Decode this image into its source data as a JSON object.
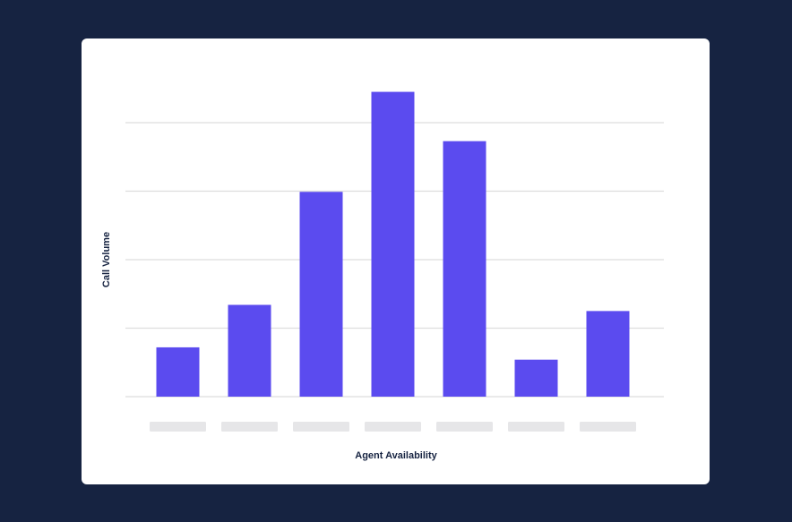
{
  "colors": {
    "background": "#162341",
    "card": "#ffffff",
    "bar": "#5b4bef",
    "gridline": "#dddddd",
    "placeholder_tick": "#e6e6e8",
    "text": "#162341"
  },
  "chart_data": {
    "type": "bar",
    "title": "",
    "xlabel": "Agent Availability",
    "ylabel": "Call Volume",
    "categories": [
      "",
      "",
      "",
      "",
      "",
      "",
      ""
    ],
    "tick_labels_shown_as": "placeholder-blocks",
    "values": [
      0.72,
      1.34,
      2.99,
      4.45,
      3.73,
      0.54,
      1.25
    ],
    "ylim": [
      0,
      4
    ],
    "y_gridlines": [
      0,
      1,
      2,
      3,
      4
    ],
    "grid": true,
    "legend": "none"
  }
}
